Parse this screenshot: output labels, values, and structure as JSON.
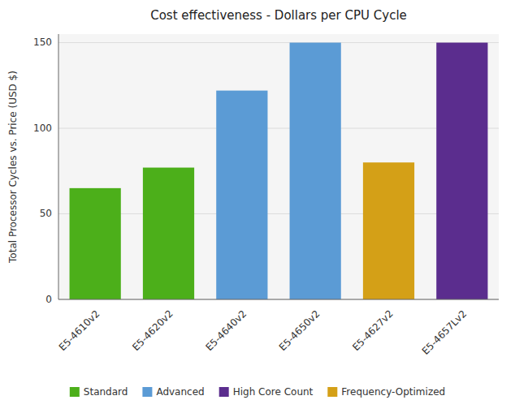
{
  "chart_data": {
    "type": "bar",
    "title": "Cost effectiveness - Dollars per CPU Cycle",
    "ylabel": "Total Processor Cycles vs. Price (USD $)",
    "categories": [
      "E5-4610v2",
      "E5-4620v2",
      "E5-4640v2",
      "E5-4650v2",
      "E5-4627v2",
      "E5-4657Lv2"
    ],
    "values": [
      65,
      77,
      122,
      150,
      80,
      150
    ],
    "colors": [
      "#4caf1a",
      "#4caf1a",
      "#5b9bd5",
      "#5b9bd5",
      "#d4a017",
      "#5b2d8e"
    ],
    "ylim": [
      0,
      155
    ],
    "yticks": [
      0,
      50,
      100,
      150
    ],
    "grid": true,
    "legend": "bottom",
    "legend_entries": [
      {
        "label": "Standard",
        "color": "#4caf1a"
      },
      {
        "label": "Advanced",
        "color": "#5b9bd5"
      },
      {
        "label": "High Core Count",
        "color": "#5b2d8e"
      },
      {
        "label": "Frequency-Optimized",
        "color": "#d4a017"
      }
    ]
  }
}
